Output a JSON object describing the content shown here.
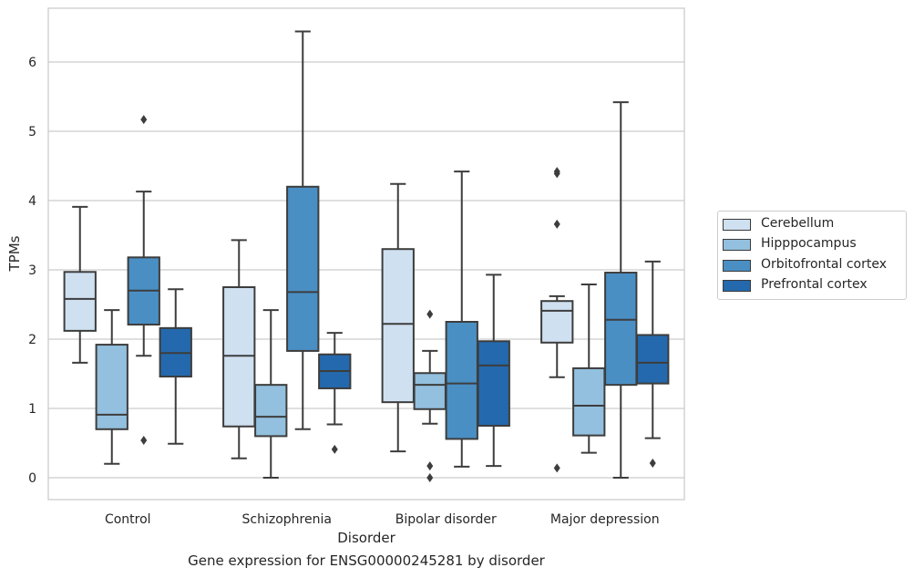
{
  "caption": "Gene expression for ENSG00000245281 by disorder",
  "chart_data": {
    "type": "boxplot",
    "title": "",
    "xlabel": "Disorder",
    "ylabel": "TPMs",
    "categories": [
      "Control",
      "Schizophrenia",
      "Bipolar disorder",
      "Major depression"
    ],
    "ylim": [
      -0.3,
      6.75
    ],
    "yticks": [
      "0",
      "1",
      "2",
      "3",
      "4",
      "5",
      "6"
    ],
    "grid": "horizontal",
    "legend_position": "right",
    "series": [
      {
        "name": "Cerebellum",
        "color": "#cfe0f1",
        "boxes": [
          {
            "whislo": 1.66,
            "q1": 2.12,
            "med": 2.58,
            "q3": 2.97,
            "whishi": 3.91,
            "fliers": []
          },
          {
            "whislo": 0.28,
            "q1": 0.74,
            "med": 1.76,
            "q3": 2.75,
            "whishi": 3.43,
            "fliers": []
          },
          {
            "whislo": 0.38,
            "q1": 1.09,
            "med": 2.22,
            "q3": 3.3,
            "whishi": 4.24,
            "fliers": []
          },
          {
            "whislo": 1.45,
            "q1": 1.95,
            "med": 2.41,
            "q3": 2.55,
            "whishi": 2.62,
            "fliers": [
              4.39,
              4.42,
              3.66,
              0.14
            ]
          }
        ]
      },
      {
        "name": "Hipppocampus",
        "color": "#93c0de",
        "boxes": [
          {
            "whislo": 0.2,
            "q1": 0.7,
            "med": 0.91,
            "q3": 1.92,
            "whishi": 2.42,
            "fliers": []
          },
          {
            "whislo": 0.0,
            "q1": 0.6,
            "med": 0.88,
            "q3": 1.34,
            "whishi": 2.42,
            "fliers": []
          },
          {
            "whislo": 0.78,
            "q1": 0.99,
            "med": 1.34,
            "q3": 1.51,
            "whishi": 1.83,
            "fliers": [
              2.36,
              0.17,
              0.0
            ]
          },
          {
            "whislo": 0.36,
            "q1": 0.61,
            "med": 1.04,
            "q3": 1.58,
            "whishi": 2.79,
            "fliers": []
          }
        ]
      },
      {
        "name": "Orbitofrontal cortex",
        "color": "#4a8fc4",
        "boxes": [
          {
            "whislo": 1.76,
            "q1": 2.21,
            "med": 2.7,
            "q3": 3.18,
            "whishi": 4.13,
            "fliers": [
              5.17,
              0.54
            ]
          },
          {
            "whislo": 0.7,
            "q1": 1.83,
            "med": 2.68,
            "q3": 4.2,
            "whishi": 6.44,
            "fliers": []
          },
          {
            "whislo": 0.16,
            "q1": 0.56,
            "med": 1.36,
            "q3": 2.25,
            "whishi": 4.42,
            "fliers": []
          },
          {
            "whislo": 0.0,
            "q1": 1.34,
            "med": 2.28,
            "q3": 2.96,
            "whishi": 5.42,
            "fliers": []
          }
        ]
      },
      {
        "name": "Prefrontal cortex",
        "color": "#2469ad",
        "boxes": [
          {
            "whislo": 0.49,
            "q1": 1.46,
            "med": 1.8,
            "q3": 2.16,
            "whishi": 2.72,
            "fliers": []
          },
          {
            "whislo": 0.77,
            "q1": 1.29,
            "med": 1.54,
            "q3": 1.78,
            "whishi": 2.09,
            "fliers": [
              0.41
            ]
          },
          {
            "whislo": 0.17,
            "q1": 0.75,
            "med": 1.62,
            "q3": 1.97,
            "whishi": 2.93,
            "fliers": []
          },
          {
            "whislo": 0.57,
            "q1": 1.36,
            "med": 1.66,
            "q3": 2.06,
            "whishi": 3.12,
            "fliers": [
              0.21
            ]
          }
        ]
      }
    ]
  }
}
